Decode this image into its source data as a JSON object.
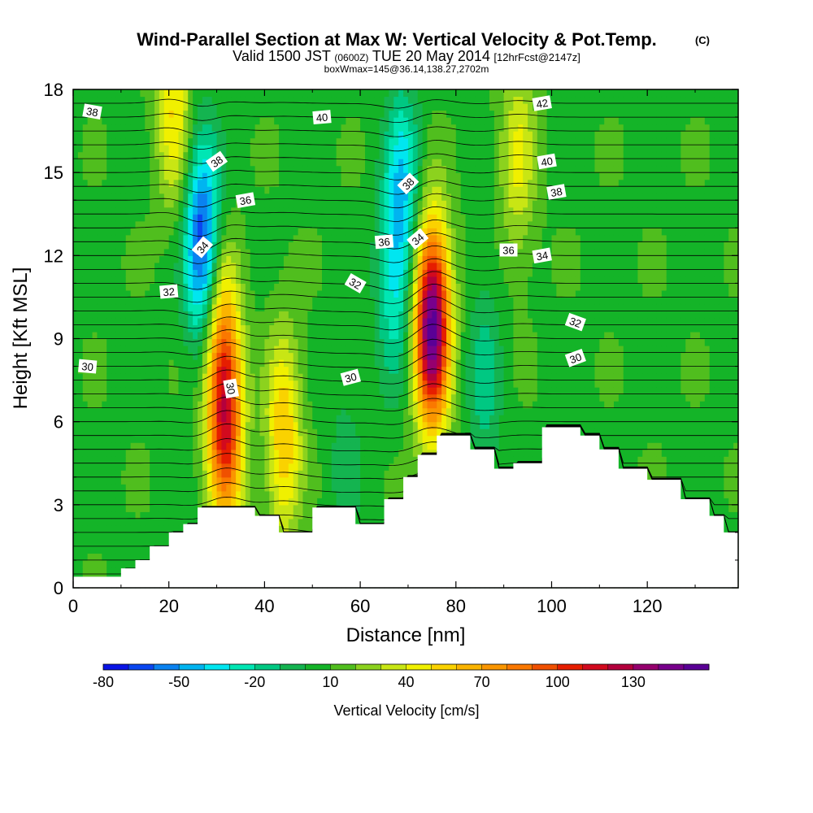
{
  "chart_data": {
    "type": "heatmap",
    "title": "Wind-Parallel Section at Max W: Vertical Velocity & Pot.Temp.",
    "title_mark": "(C)",
    "subtitle": {
      "part1": "Valid 1500 JST",
      "part2": "(0600Z)",
      "part3": "TUE 20 May 2014",
      "part4": "[12hrFcst@2147z]"
    },
    "subtitle2": "boxWmax=145@36.14,138.27,2702m",
    "xlabel": "Distance [nm]",
    "ylabel": "Height [Kft MSL]",
    "xlim": [
      0,
      139
    ],
    "ylim": [
      0,
      18
    ],
    "xticks": [
      "0",
      "20",
      "40",
      "60",
      "80",
      "100",
      "120"
    ],
    "yticks": [
      "0",
      "3",
      "6",
      "9",
      "12",
      "15",
      "18"
    ],
    "colorbar": {
      "label": "Vertical Velocity [cm/s]",
      "tick_labels": [
        "-80",
        "-50",
        "-20",
        "10",
        "40",
        "70",
        "100",
        "130"
      ],
      "min": -80,
      "max": 160,
      "step": 10,
      "colors": [
        "#0a14e6",
        "#0a46f0",
        "#0a82f0",
        "#00b4f0",
        "#00e6f0",
        "#00e6b4",
        "#00c882",
        "#14b450",
        "#14b428",
        "#50be1e",
        "#8cd21e",
        "#c8e614",
        "#f0f000",
        "#fad200",
        "#fab400",
        "#fa9600",
        "#fa7800",
        "#f05000",
        "#e61e00",
        "#d20a1e",
        "#b4003c",
        "#96006e",
        "#78008c",
        "#5a0096"
      ]
    },
    "background_w": 8,
    "w_features": [
      {
        "x": 27,
        "z": 12.5,
        "w": -75
      },
      {
        "x": 31,
        "z": 8.5,
        "w": 65
      },
      {
        "x": 32,
        "z": 5.5,
        "w": 80
      },
      {
        "x": 44,
        "z": 5.5,
        "w": 55
      },
      {
        "x": 21,
        "z": 17.5,
        "w": 45
      },
      {
        "x": 67,
        "z": 11,
        "w": -30
      },
      {
        "x": 69,
        "z": 14.5,
        "w": -40
      },
      {
        "x": 75,
        "z": 9.5,
        "w": 150
      },
      {
        "x": 93,
        "z": 15.5,
        "w": 35
      },
      {
        "x": 86,
        "z": 7.5,
        "w": -20
      },
      {
        "x": 57,
        "z": 4.5,
        "w": -10
      }
    ],
    "terrain": [
      {
        "x": 0,
        "z": 0.4
      },
      {
        "x": 10,
        "z": 0.7
      },
      {
        "x": 13,
        "z": 1.0
      },
      {
        "x": 16,
        "z": 1.5
      },
      {
        "x": 20,
        "z": 2.0
      },
      {
        "x": 23,
        "z": 2.3
      },
      {
        "x": 26,
        "z": 2.9
      },
      {
        "x": 38,
        "z": 2.6
      },
      {
        "x": 43,
        "z": 2.0
      },
      {
        "x": 50,
        "z": 2.9
      },
      {
        "x": 59,
        "z": 2.3
      },
      {
        "x": 65,
        "z": 3.2
      },
      {
        "x": 69,
        "z": 4.0
      },
      {
        "x": 72,
        "z": 4.8
      },
      {
        "x": 76,
        "z": 5.5
      },
      {
        "x": 83,
        "z": 5.0
      },
      {
        "x": 88,
        "z": 4.3
      },
      {
        "x": 92,
        "z": 4.5
      },
      {
        "x": 98,
        "z": 5.8
      },
      {
        "x": 106,
        "z": 5.5
      },
      {
        "x": 110,
        "z": 5.0
      },
      {
        "x": 114,
        "z": 4.3
      },
      {
        "x": 120,
        "z": 3.9
      },
      {
        "x": 127,
        "z": 3.2
      },
      {
        "x": 133,
        "z": 2.6
      },
      {
        "x": 136,
        "z": 2.0
      },
      {
        "x": 139,
        "z": 1.6
      }
    ],
    "contour_labels": [
      {
        "text": "38",
        "x": 4,
        "z": 17.2,
        "angle": 10
      },
      {
        "text": "40",
        "x": 52,
        "z": 17.0,
        "angle": -5
      },
      {
        "text": "42",
        "x": 98,
        "z": 17.5,
        "angle": -10
      },
      {
        "text": "38",
        "x": 30,
        "z": 15.4,
        "angle": -35
      },
      {
        "text": "36",
        "x": 36,
        "z": 14.0,
        "angle": -10
      },
      {
        "text": "38",
        "x": 70,
        "z": 14.6,
        "angle": -45
      },
      {
        "text": "40",
        "x": 99,
        "z": 15.4,
        "angle": -10
      },
      {
        "text": "38",
        "x": 101,
        "z": 14.3,
        "angle": -10
      },
      {
        "text": "36",
        "x": 65,
        "z": 12.5,
        "angle": -5
      },
      {
        "text": "34",
        "x": 72,
        "z": 12.6,
        "angle": -40
      },
      {
        "text": "36",
        "x": 91,
        "z": 12.2,
        "angle": 0
      },
      {
        "text": "34",
        "x": 98,
        "z": 12.0,
        "angle": -10
      },
      {
        "text": "34",
        "x": 27,
        "z": 12.3,
        "angle": -50
      },
      {
        "text": "32",
        "x": 20,
        "z": 10.7,
        "angle": -5
      },
      {
        "text": "32",
        "x": 59,
        "z": 11.0,
        "angle": 30
      },
      {
        "text": "32",
        "x": 105,
        "z": 9.6,
        "angle": 20
      },
      {
        "text": "30",
        "x": 3,
        "z": 8.0,
        "angle": 5
      },
      {
        "text": "30",
        "x": 33,
        "z": 7.2,
        "angle": 80
      },
      {
        "text": "30",
        "x": 58,
        "z": 7.6,
        "angle": -15
      },
      {
        "text": "30",
        "x": 105,
        "z": 8.3,
        "angle": -20
      }
    ]
  }
}
